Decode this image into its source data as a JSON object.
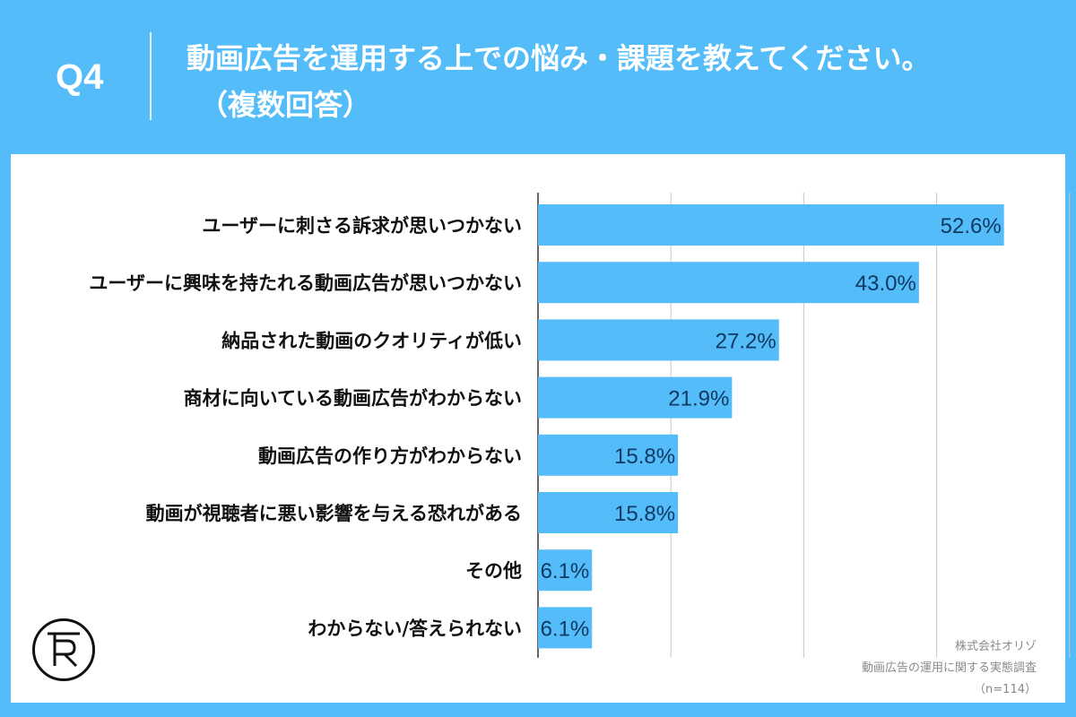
{
  "header": {
    "question_number": "Q4",
    "title_line1": "動画広告を運用する上での悩み・課題を教えてください。",
    "title_line2": "（複数回答）"
  },
  "credits": {
    "company": "株式会社オリゾ",
    "survey": "動画広告の運用に関する実態調査",
    "sample": "（n=114）"
  },
  "logo": {
    "icon": "company-logo-icon"
  },
  "colors": {
    "background": "#54BCF8",
    "bar": "#54BCF8",
    "value_text": "#0E3A63",
    "grid": "#C8C8C8"
  },
  "chart_data": {
    "type": "bar",
    "orientation": "horizontal",
    "title": "",
    "xlabel": "",
    "ylabel": "",
    "unit": "%",
    "xlim": [
      0,
      60
    ],
    "grid": true,
    "categories": [
      "ユーザーに刺さる訴求が思いつかない",
      "ユーザーに興味を持たれる動画広告が思いつかない",
      "納品された動画のクオリティが低い",
      "商材に向いている動画広告がわからない",
      "動画広告の作り方がわからない",
      "動画が視聴者に悪い影響を与える恐れがある",
      "その他",
      "わからない/答えられない"
    ],
    "values": [
      52.6,
      43.0,
      27.2,
      21.9,
      15.8,
      15.8,
      6.1,
      6.1
    ],
    "value_labels": [
      "52.6%",
      "43.0%",
      "27.2%",
      "21.9%",
      "15.8%",
      "15.8%",
      "6.1%",
      "6.1%"
    ]
  }
}
